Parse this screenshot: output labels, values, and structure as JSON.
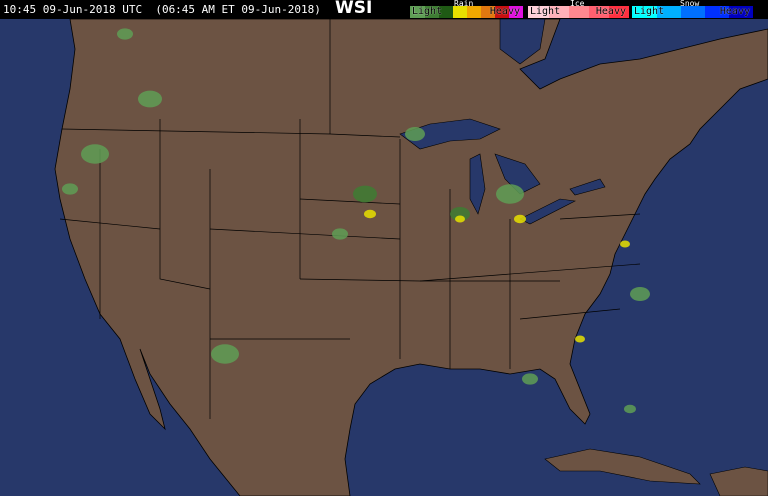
{
  "header": {
    "timestamp": "10:45 09-Jun-2018 UTC  (06:45 AM ET 09-Jun-2018)",
    "logo": "WSI",
    "legend": {
      "rain": {
        "title": "Rain",
        "light": "Light",
        "heavy": "Heavy",
        "colors": [
          "#5f9e55",
          "#3e7d33",
          "#1f5a14",
          "#e8e000",
          "#f0a800",
          "#e07810",
          "#c81010",
          "#e010e0"
        ]
      },
      "ice": {
        "title": "Ice",
        "light": "Light",
        "heavy": "Heavy",
        "colors": [
          "#ffd0d8",
          "#ffb0b8",
          "#ff8890",
          "#ff6070",
          "#ff3040"
        ]
      },
      "snow": {
        "title": "Snow",
        "light": "Light",
        "heavy": "Heavy",
        "colors": [
          "#00ffff",
          "#00b0ff",
          "#0070ff",
          "#0030ff",
          "#0000c0"
        ]
      }
    }
  },
  "map": {
    "ocean_color": "#27386a",
    "land_color": "#6c5343",
    "border_color": "#000000"
  }
}
